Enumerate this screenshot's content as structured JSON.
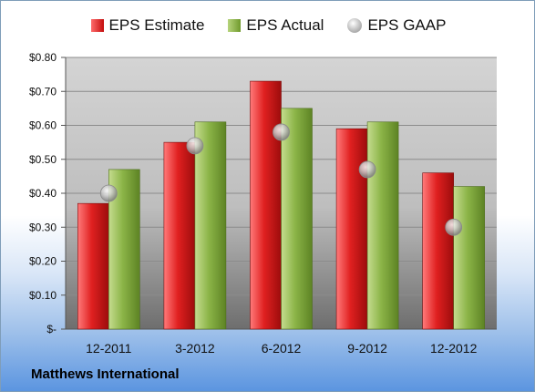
{
  "chart_data": {
    "type": "bar",
    "categories": [
      "12-2011",
      "3-2012",
      "6-2012",
      "9-2012",
      "12-2012"
    ],
    "series": [
      {
        "name": "EPS Estimate",
        "values": [
          0.37,
          0.55,
          0.73,
          0.59,
          0.46
        ],
        "color": "#d01a1a",
        "kind": "bar"
      },
      {
        "name": "EPS Actual",
        "values": [
          0.47,
          0.61,
          0.65,
          0.61,
          0.42
        ],
        "color": "#7fa83c",
        "kind": "bar"
      },
      {
        "name": "EPS GAAP",
        "values": [
          0.4,
          0.54,
          0.58,
          0.47,
          0.3
        ],
        "color": "#b8b8b8",
        "kind": "marker"
      }
    ],
    "ylim": [
      0,
      0.8
    ],
    "yticks": [
      "$-",
      "$0.10",
      "$0.20",
      "$0.30",
      "$0.40",
      "$0.50",
      "$0.60",
      "$0.70",
      "$0.80"
    ],
    "grid": true,
    "legend_position": "top-center"
  },
  "company": "Matthews International"
}
